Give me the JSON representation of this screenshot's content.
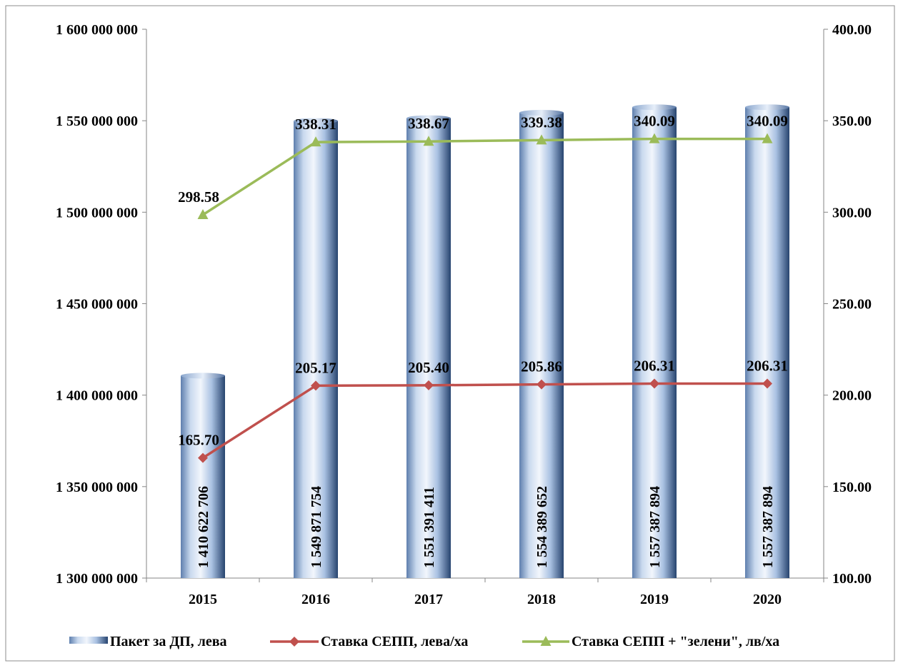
{
  "chart_data": {
    "type": "bar",
    "categories": [
      "2015",
      "2016",
      "2017",
      "2018",
      "2019",
      "2020"
    ],
    "y_left": {
      "min": 1300000000,
      "max": 1600000000,
      "ticks": [
        1300000000,
        1350000000,
        1400000000,
        1450000000,
        1500000000,
        1550000000,
        1600000000
      ],
      "tick_labels": [
        "1 300 000 000",
        "1 350 000 000",
        "1 400 000 000",
        "1 450 000 000",
        "1 500 000 000",
        "1 550 000 000",
        "1 600 000 000"
      ]
    },
    "y_right": {
      "min": 100,
      "max": 400,
      "ticks": [
        100,
        150,
        200,
        250,
        300,
        350,
        400
      ],
      "tick_labels": [
        "100.00",
        "150.00",
        "200.00",
        "250.00",
        "300.00",
        "350.00",
        "400.00"
      ]
    },
    "series": [
      {
        "name": "Пакет за ДП, лева",
        "type": "bar",
        "axis": "left",
        "values": [
          1410622706,
          1549871754,
          1551391411,
          1554389652,
          1557387894,
          1557387894
        ],
        "labels": [
          "1 410 622 706",
          "1 549 871 754",
          "1 551 391 411",
          "1 554 389 652",
          "1 557 387 894",
          "1 557 387 894"
        ],
        "color": "#9db8dc"
      },
      {
        "name": "Ставка СЕПП, лева/ха",
        "type": "line",
        "axis": "right",
        "marker": "diamond",
        "values": [
          165.7,
          205.17,
          205.4,
          205.86,
          206.31,
          206.31
        ],
        "labels": [
          "165.70",
          "205.17",
          "205.40",
          "205.86",
          "206.31",
          "206.31"
        ],
        "color": "#c0504d"
      },
      {
        "name": "Ставка СЕПП + \"зелени\", лв/ха",
        "type": "line",
        "axis": "right",
        "marker": "triangle",
        "values": [
          298.58,
          338.31,
          338.67,
          339.38,
          340.09,
          340.09
        ],
        "labels": [
          "298.58",
          "338.31",
          "338.67",
          "339.38",
          "340.09",
          "340.09"
        ],
        "color": "#9bbb59"
      }
    ],
    "legend": {
      "position": "bottom",
      "items": [
        "Пакет за ДП, лева",
        "Ставка СЕПП, лева/ха",
        "Ставка СЕПП + \"зелени\", лв/ха"
      ]
    },
    "grid": false
  }
}
